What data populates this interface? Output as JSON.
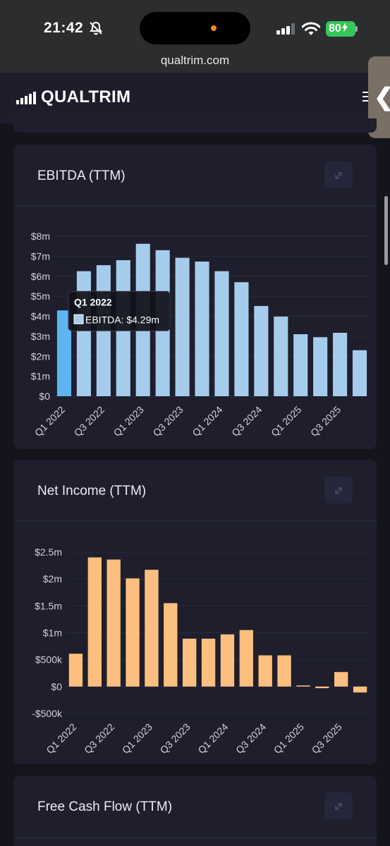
{
  "status_bar": {
    "time": "21:42",
    "battery": "80"
  },
  "browser": {
    "url": "qualtrim.com"
  },
  "header": {
    "logo": "QUALTRIM",
    "side_tab_glyph": "❮"
  },
  "cards": {
    "ebitda": {
      "title": "EBITDA (TTM)"
    },
    "net_income": {
      "title": "Net Income (TTM)"
    },
    "fcf": {
      "title": "Free Cash Flow (TTM)"
    }
  },
  "chart_data": [
    {
      "type": "bar",
      "title": "EBITDA (TTM)",
      "categories": [
        "Q1 2022",
        "Q2 2022",
        "Q3 2022",
        "Q4 2022",
        "Q1 2023",
        "Q2 2023",
        "Q3 2023",
        "Q4 2023",
        "Q1 2024",
        "Q2 2024",
        "Q3 2024",
        "Q4 2024",
        "Q1 2025",
        "Q2 2025",
        "Q3 2025",
        "Q4 2025"
      ],
      "x_tick_labels": [
        "Q1 2022",
        "Q3 2022",
        "Q1 2023",
        "Q3 2023",
        "Q1 2024",
        "Q3 2024",
        "Q1 2025",
        "Q3 2025"
      ],
      "series": [
        {
          "name": "EBITDA",
          "values": [
            4.29,
            6.25,
            6.55,
            6.8,
            7.62,
            7.3,
            6.92,
            6.73,
            6.25,
            5.7,
            4.51,
            3.98,
            3.1,
            2.95,
            3.17,
            2.3
          ]
        }
      ],
      "unit": "m",
      "ylim": [
        0,
        8
      ],
      "y_ticks": [
        "$0",
        "$1m",
        "$2m",
        "$3m",
        "$4m",
        "$5m",
        "$6m",
        "$7m",
        "$8m"
      ],
      "bar_color": "#a6ccec",
      "highlight_color": "#5eb5f4",
      "highlight_index": 0,
      "tooltip": {
        "title": "Q1 2022",
        "label": "EBITDA: $4.29m"
      },
      "grid": true
    },
    {
      "type": "bar",
      "title": "Net Income (TTM)",
      "categories": [
        "Q1 2022",
        "Q2 2022",
        "Q3 2022",
        "Q4 2022",
        "Q1 2023",
        "Q2 2023",
        "Q3 2023",
        "Q4 2023",
        "Q1 2024",
        "Q2 2024",
        "Q3 2024",
        "Q4 2024",
        "Q1 2025",
        "Q2 2025",
        "Q3 2025",
        "Q4 2025"
      ],
      "x_tick_labels": [
        "Q1 2022",
        "Q3 2022",
        "Q1 2023",
        "Q3 2023",
        "Q1 2024",
        "Q3 2024",
        "Q1 2025",
        "Q3 2025"
      ],
      "series": [
        {
          "name": "Net Income",
          "values": [
            0.61,
            2.4,
            2.36,
            2.01,
            2.17,
            1.55,
            0.89,
            0.89,
            0.97,
            1.05,
            0.58,
            0.58,
            0.02,
            -0.03,
            0.27,
            -0.11
          ]
        }
      ],
      "unit": "m",
      "ylim": [
        -0.5,
        2.5
      ],
      "y_ticks": [
        "-$500k",
        "$0",
        "$500k",
        "$1m",
        "$1.5m",
        "$2m",
        "$2.5m"
      ],
      "bar_color": "#fdbf7f",
      "grid": true
    }
  ]
}
